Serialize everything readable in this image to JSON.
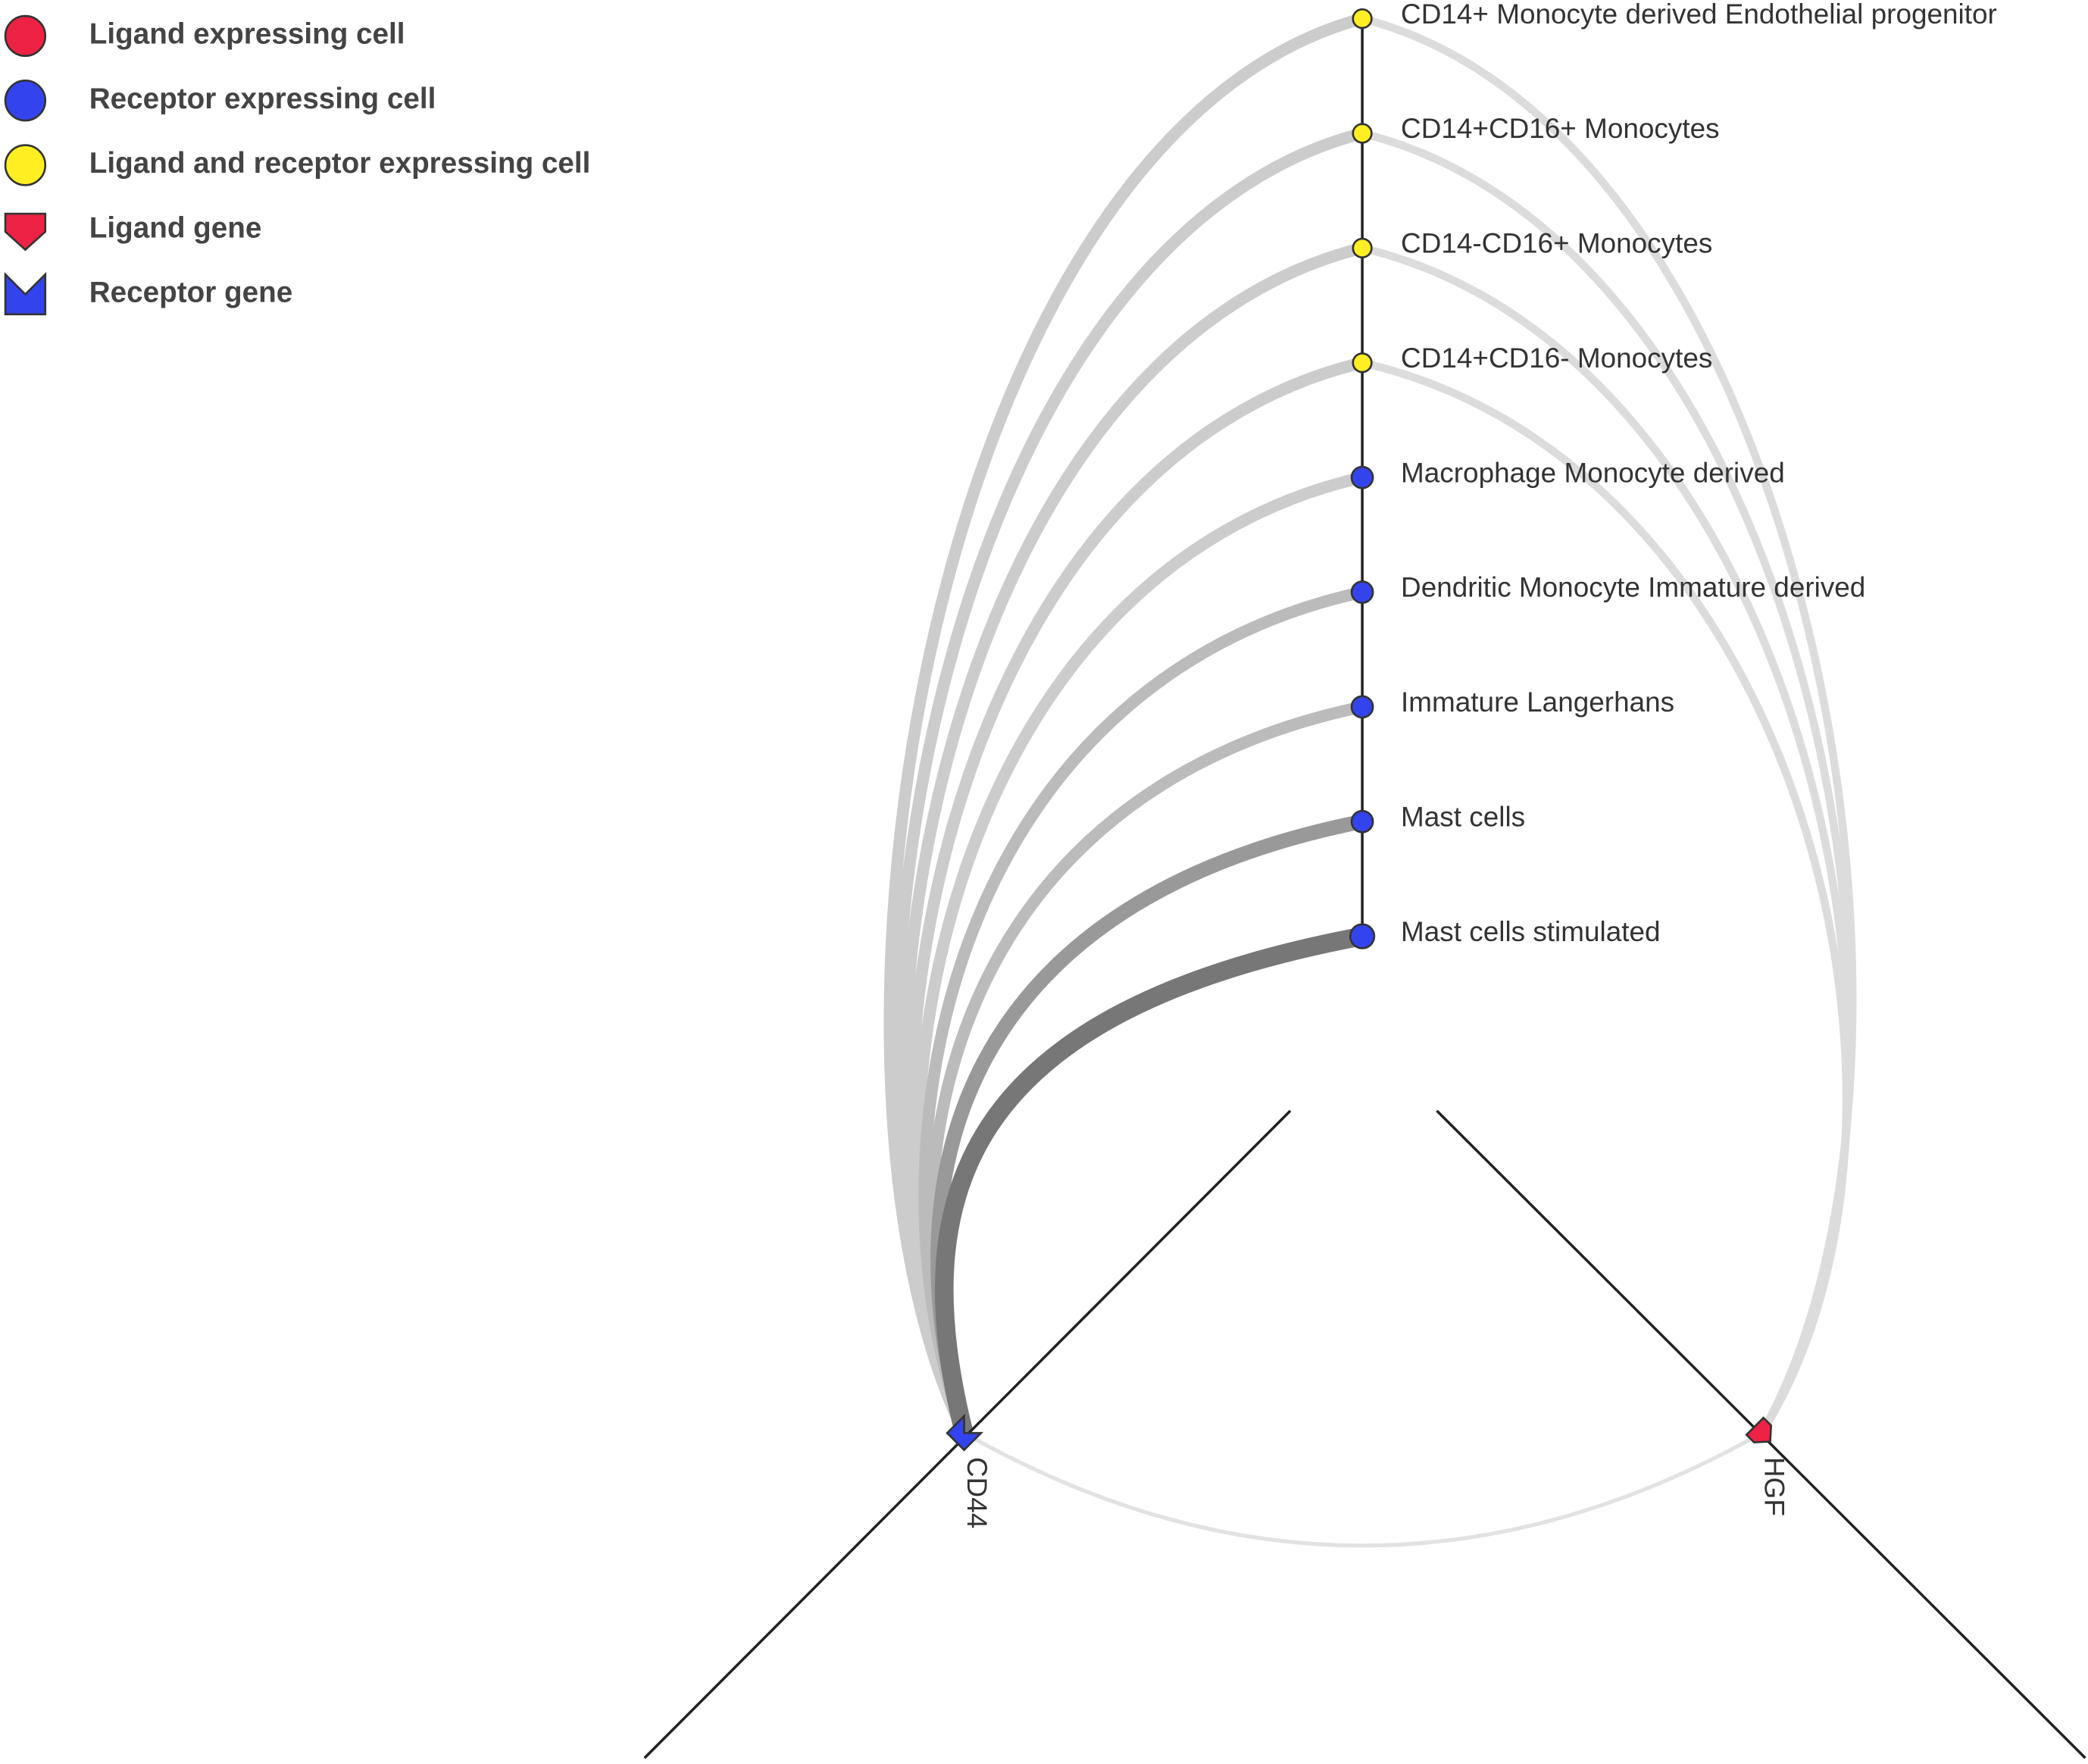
{
  "legend": [
    {
      "label": "Ligand expressing cell",
      "kind": "ligand-cell"
    },
    {
      "label": "Receptor expressing cell",
      "kind": "receptor-cell"
    },
    {
      "label": "Ligand and receptor expressing cell",
      "kind": "both-cell"
    },
    {
      "label": "Ligand gene",
      "kind": "ligand-gene"
    },
    {
      "label": "Receptor gene",
      "kind": "receptor-gene"
    }
  ],
  "cells": [
    {
      "label": "CD14+ Monocyte derived Endothelial progenitor",
      "role": "both-cell"
    },
    {
      "label": "CD14+CD16+ Monocytes",
      "role": "both-cell"
    },
    {
      "label": "CD14-CD16+ Monocytes",
      "role": "both-cell"
    },
    {
      "label": "CD14+CD16- Monocytes",
      "role": "both-cell"
    },
    {
      "label": "Macrophage Monocyte derived",
      "role": "receptor-cell"
    },
    {
      "label": "Dendritic Monocyte Immature derived",
      "role": "receptor-cell"
    },
    {
      "label": "Immature Langerhans",
      "role": "receptor-cell"
    },
    {
      "label": "Mast cells",
      "role": "receptor-cell"
    },
    {
      "label": "Mast cells stimulated",
      "role": "receptor-cell"
    }
  ],
  "genes": [
    {
      "label": "CD44",
      "role": "receptor-gene"
    },
    {
      "label": "HGF",
      "role": "ligand-gene"
    }
  ]
}
